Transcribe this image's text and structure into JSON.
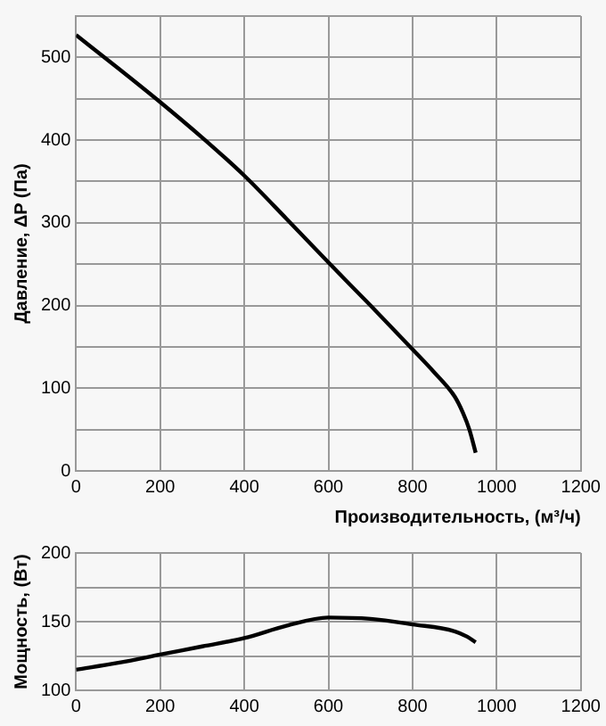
{
  "chart_data": [
    {
      "type": "line",
      "xlabel": "Производительность, (м³/ч)",
      "ylabel": "Давление, ΔP (Па)",
      "xlim": [
        0,
        1200
      ],
      "xticks": [
        0,
        200,
        400,
        600,
        800,
        1000,
        1200
      ],
      "ylim": [
        0,
        550
      ],
      "yticks": [
        0,
        {
          "value": 50,
          "label": null
        },
        100,
        {
          "value": 150,
          "label": null
        },
        200,
        {
          "value": 250,
          "label": null
        },
        300,
        {
          "value": 350,
          "label": null
        },
        400,
        {
          "value": 450,
          "label": null
        },
        500,
        {
          "value": 550,
          "label": null
        }
      ],
      "grid": true,
      "marker": "none",
      "series": [
        {
          "color": "#000000",
          "x": [
            0,
            100,
            200,
            300,
            400,
            500,
            600,
            700,
            800,
            850,
            900,
            920,
            935,
            950
          ],
          "values": [
            527,
            487,
            446,
            403,
            357,
            305,
            252,
            200,
            147,
            120,
            90,
            70,
            50,
            22
          ]
        }
      ]
    },
    {
      "type": "line",
      "ylabel": "Мощность, (Вт)",
      "xlim": [
        0,
        1200
      ],
      "xticks": [
        0,
        200,
        400,
        600,
        800,
        1000,
        1200
      ],
      "ylim": [
        100,
        200
      ],
      "yticks": [
        100,
        {
          "value": 125,
          "label": null
        },
        150,
        {
          "value": 175,
          "label": null
        },
        200
      ],
      "grid": true,
      "marker": "none",
      "series": [
        {
          "color": "#000000",
          "x": [
            0,
            100,
            200,
            300,
            400,
            500,
            600,
            700,
            800,
            900,
            930,
            950
          ],
          "values": [
            115,
            120,
            126,
            132,
            138,
            147,
            153,
            152,
            148,
            143,
            139,
            135
          ]
        }
      ]
    }
  ]
}
